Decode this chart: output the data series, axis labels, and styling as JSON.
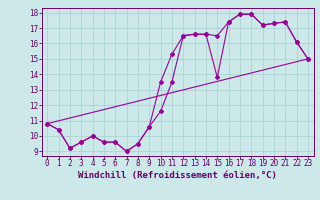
{
  "title": "",
  "xlabel": "Windchill (Refroidissement éolien,°C)",
  "background_color": "#cce8e8",
  "line_color": "#990099",
  "grid_color": "#aad4d4",
  "xlim": [
    -0.5,
    23.5
  ],
  "ylim": [
    8.7,
    18.3
  ],
  "xticks": [
    0,
    1,
    2,
    3,
    4,
    5,
    6,
    7,
    8,
    9,
    10,
    11,
    12,
    13,
    14,
    15,
    16,
    17,
    18,
    19,
    20,
    21,
    22,
    23
  ],
  "yticks": [
    9,
    10,
    11,
    12,
    13,
    14,
    15,
    16,
    17,
    18
  ],
  "line1_x": [
    0,
    1,
    2,
    3,
    4,
    5,
    6,
    7,
    8,
    9,
    10,
    11,
    12,
    13,
    14,
    15,
    16,
    17,
    18,
    19,
    20,
    21,
    22,
    23
  ],
  "line1_y": [
    10.8,
    10.4,
    9.2,
    9.6,
    10.0,
    9.6,
    9.6,
    9.0,
    9.5,
    10.6,
    11.6,
    13.5,
    16.5,
    16.6,
    16.6,
    16.5,
    17.4,
    17.9,
    17.9,
    17.2,
    17.3,
    17.4,
    16.1,
    15.0
  ],
  "line2_x": [
    0,
    1,
    2,
    3,
    4,
    5,
    6,
    7,
    8,
    9,
    10,
    11,
    12,
    13,
    14,
    15,
    16,
    17,
    18,
    19,
    20,
    21,
    22,
    23
  ],
  "line2_y": [
    10.8,
    10.4,
    9.2,
    9.6,
    10.0,
    9.6,
    9.6,
    9.0,
    9.5,
    10.6,
    13.5,
    15.3,
    16.5,
    16.6,
    16.6,
    13.8,
    17.4,
    17.9,
    17.9,
    17.2,
    17.3,
    17.4,
    16.1,
    15.0
  ],
  "line3_x": [
    0,
    23
  ],
  "line3_y": [
    10.8,
    15.0
  ],
  "tick_fontsize": 5.5,
  "label_fontsize": 6.5
}
